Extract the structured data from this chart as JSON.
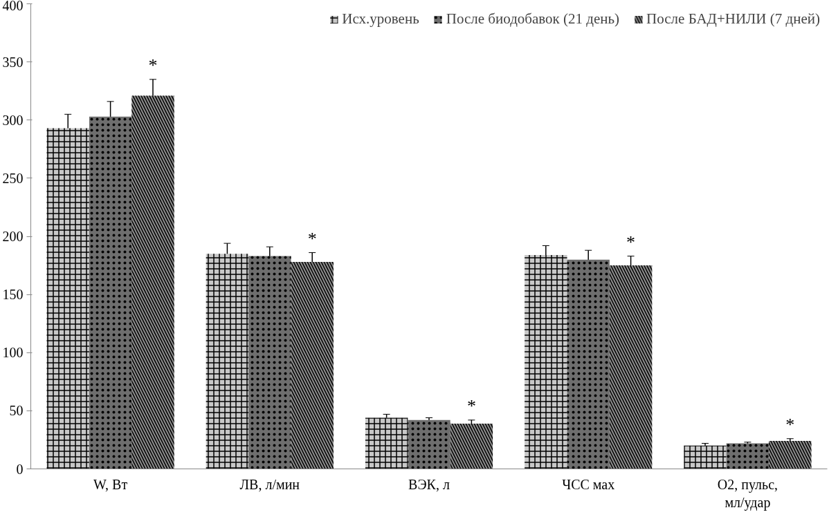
{
  "chart_data": {
    "type": "bar",
    "categories": [
      "W, Вт",
      "ЛВ, л/мин",
      "ВЭК, л",
      "ЧСС мах",
      "O2, пульс,\nмл/удар"
    ],
    "series": [
      {
        "name": "Исх.уровень",
        "color": "#c8c8c8",
        "values": [
          293,
          185,
          44,
          184,
          20
        ],
        "errors": [
          12,
          9,
          3,
          8,
          2
        ]
      },
      {
        "name": "После биодобавок (21 день)",
        "color": "#6e6e6e",
        "values": [
          303,
          183,
          42,
          180,
          22
        ],
        "errors": [
          13,
          8,
          2,
          8,
          1
        ]
      },
      {
        "name": "После БАД+НИЛИ (7 дней)",
        "color": "#8c8c8c",
        "values": [
          321,
          178,
          39,
          175,
          24
        ],
        "errors": [
          14,
          8,
          3,
          8,
          2
        ]
      }
    ],
    "ylim": [
      0,
      400
    ],
    "yticks": [
      0,
      50,
      100,
      150,
      200,
      250,
      300,
      350,
      400
    ],
    "grid": false,
    "legend": "top",
    "annotations": [
      "*",
      "*",
      "*",
      "*",
      "*"
    ]
  }
}
